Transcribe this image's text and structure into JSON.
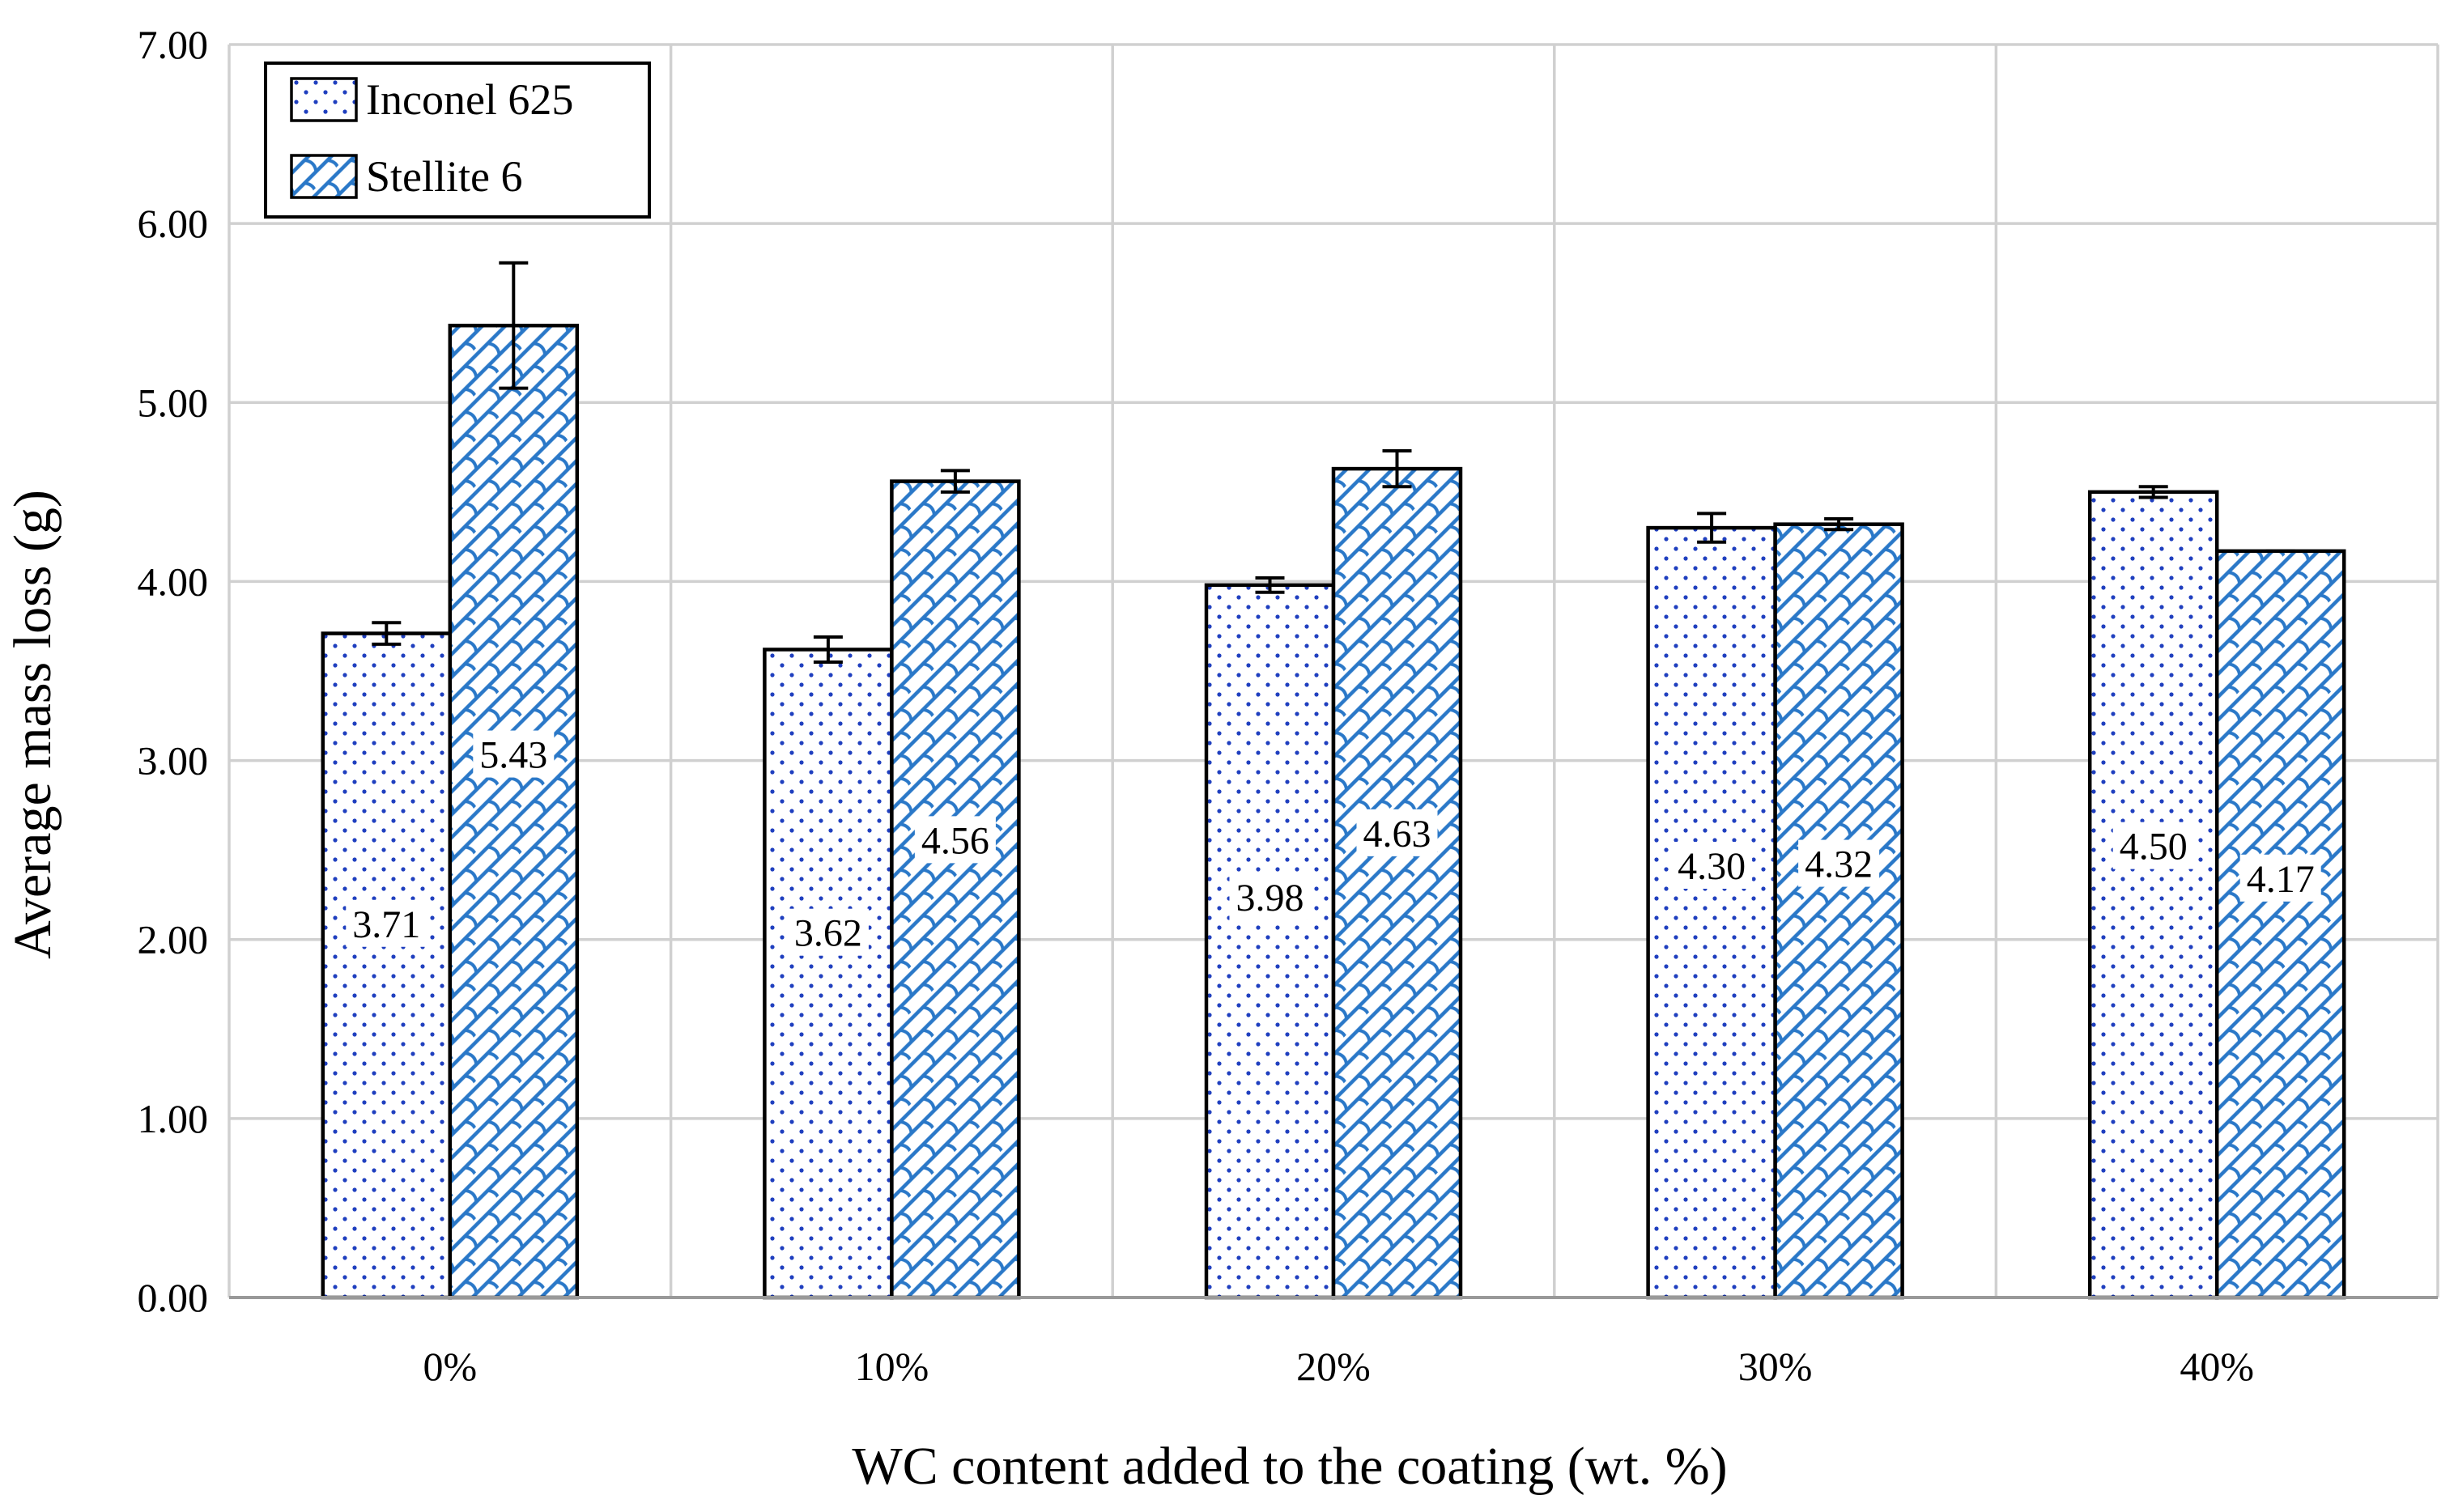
{
  "chart_data": {
    "type": "bar",
    "title": "",
    "xlabel": "WC content added to the coating (wt. %)",
    "ylabel": "Average mass loss (g)",
    "ylim": [
      0,
      7
    ],
    "yticks": [
      "0.00",
      "1.00",
      "2.00",
      "3.00",
      "4.00",
      "5.00",
      "6.00",
      "7.00"
    ],
    "categories": [
      "0%",
      "10%",
      "20%",
      "30%",
      "40%"
    ],
    "grid": true,
    "legend_position": "top-left",
    "series": [
      {
        "name": "Inconel 625",
        "pattern": "dots",
        "color": "#1f3fbf",
        "values": [
          3.71,
          3.62,
          3.98,
          4.3,
          4.5
        ],
        "labels": [
          "3.71",
          "3.62",
          "3.98",
          "4.30",
          "4.50"
        ],
        "errors": [
          0.06,
          0.07,
          0.04,
          0.08,
          0.03
        ]
      },
      {
        "name": "Stellite 6",
        "pattern": "hatch",
        "color": "#2a78c8",
        "values": [
          5.43,
          4.56,
          4.63,
          4.32,
          4.17
        ],
        "labels": [
          "5.43",
          "4.56",
          "4.63",
          "4.32",
          "4.17"
        ],
        "errors": [
          0.35,
          0.06,
          0.1,
          0.03,
          0.0
        ]
      }
    ]
  }
}
